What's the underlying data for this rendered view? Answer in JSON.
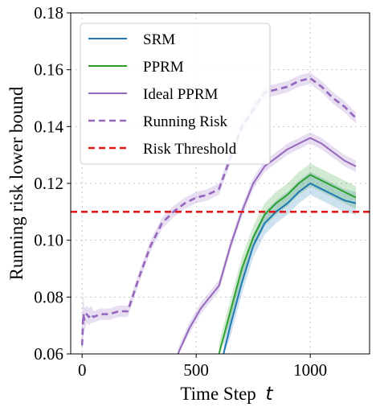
{
  "chart_data": {
    "type": "line",
    "xlabel": "Time Step",
    "xlabel_var": "t",
    "ylabel": "Running risk lower bound",
    "xlim": [
      -50,
      1260
    ],
    "ylim": [
      0.06,
      0.18
    ],
    "xticks": [
      0,
      500,
      1000
    ],
    "xtick_labels": [
      "0",
      "500",
      "1000"
    ],
    "yticks": [
      0.06,
      0.08,
      0.1,
      0.12,
      0.14,
      0.16,
      0.18
    ],
    "ytick_labels": [
      "0.06",
      "0.08",
      "0.10",
      "0.12",
      "0.14",
      "0.16",
      "0.18"
    ],
    "grid": true,
    "legend_position": "upper-left",
    "risk_threshold": 0.11,
    "series": [
      {
        "name": "SRM",
        "color": "#1f77b4",
        "style": "solid",
        "x": [
          620,
          650,
          700,
          750,
          800,
          850,
          900,
          950,
          1000,
          1050,
          1100,
          1150,
          1200
        ],
        "y": [
          0.06,
          0.07,
          0.085,
          0.098,
          0.106,
          0.11,
          0.113,
          0.117,
          0.12,
          0.118,
          0.116,
          0.114,
          0.113
        ],
        "band": [
          0.004,
          0.004,
          0.004,
          0.004,
          0.004,
          0.004,
          0.004,
          0.004,
          0.004,
          0.004,
          0.004,
          0.004,
          0.004
        ]
      },
      {
        "name": "PPRM",
        "color": "#2ca02c",
        "style": "solid",
        "x": [
          600,
          650,
          700,
          750,
          800,
          850,
          900,
          950,
          1000,
          1050,
          1100,
          1150,
          1200
        ],
        "y": [
          0.06,
          0.075,
          0.09,
          0.101,
          0.109,
          0.113,
          0.116,
          0.12,
          0.123,
          0.121,
          0.119,
          0.117,
          0.115
        ],
        "band": [
          0.004,
          0.004,
          0.004,
          0.004,
          0.004,
          0.004,
          0.004,
          0.004,
          0.004,
          0.004,
          0.004,
          0.004,
          0.004
        ]
      },
      {
        "name": "Ideal PPRM",
        "color": "#9467bd",
        "style": "solid",
        "x": [
          420,
          470,
          520,
          570,
          600,
          650,
          700,
          750,
          800,
          850,
          900,
          950,
          1000,
          1050,
          1100,
          1150,
          1200
        ],
        "y": [
          0.06,
          0.069,
          0.076,
          0.081,
          0.084,
          0.098,
          0.11,
          0.12,
          0.126,
          0.129,
          0.132,
          0.134,
          0.136,
          0.134,
          0.131,
          0.128,
          0.126
        ],
        "band": [
          0.002,
          0.002,
          0.002,
          0.002,
          0.002,
          0.002,
          0.002,
          0.002,
          0.002,
          0.002,
          0.002,
          0.002,
          0.002,
          0.002,
          0.002,
          0.002,
          0.002
        ]
      },
      {
        "name": "Running Risk",
        "color": "#9467bd",
        "style": "dashed",
        "x": [
          0,
          5,
          10,
          20,
          30,
          40,
          50,
          80,
          120,
          160,
          200,
          250,
          300,
          350,
          400,
          450,
          500,
          550,
          600,
          650,
          700,
          750,
          800,
          850,
          900,
          950,
          1000,
          1050,
          1100,
          1150,
          1200
        ],
        "y": [
          0.063,
          0.074,
          0.072,
          0.074,
          0.073,
          0.074,
          0.073,
          0.074,
          0.074,
          0.075,
          0.075,
          0.087,
          0.098,
          0.106,
          0.11,
          0.113,
          0.115,
          0.116,
          0.118,
          0.129,
          0.14,
          0.146,
          0.152,
          0.153,
          0.154,
          0.156,
          0.157,
          0.154,
          0.15,
          0.147,
          0.143
        ],
        "band": [
          0.01,
          0.008,
          0.004,
          0.003,
          0.003,
          0.003,
          0.002,
          0.002,
          0.002,
          0.002,
          0.002,
          0.002,
          0.002,
          0.002,
          0.002,
          0.002,
          0.002,
          0.002,
          0.002,
          0.002,
          0.002,
          0.002,
          0.002,
          0.002,
          0.002,
          0.002,
          0.002,
          0.002,
          0.002,
          0.002,
          0.002
        ]
      },
      {
        "name": "Risk Threshold",
        "color": "#e31a1c",
        "style": "dashed",
        "x": [
          -50,
          1260
        ],
        "y": [
          0.11,
          0.11
        ]
      }
    ]
  }
}
